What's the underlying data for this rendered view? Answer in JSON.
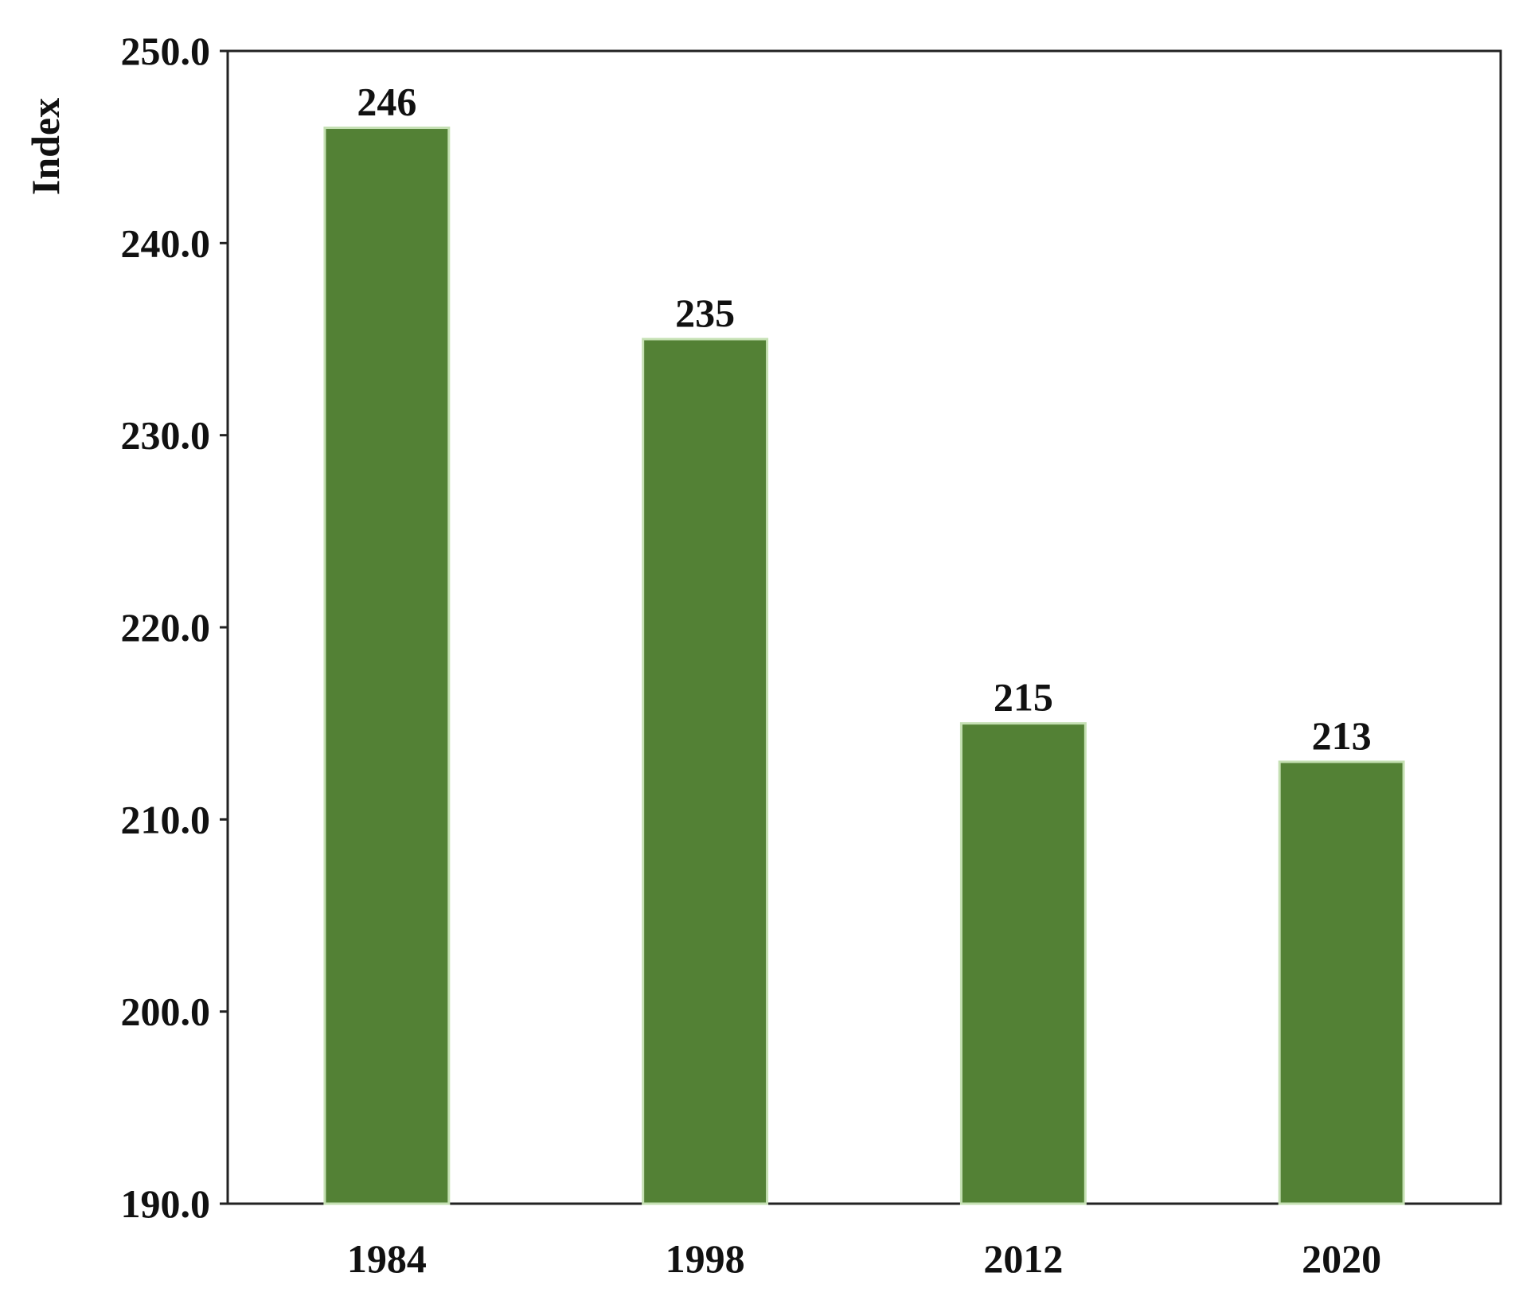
{
  "chart_data": {
    "type": "bar",
    "title": "",
    "xlabel": "",
    "ylabel": "Index",
    "categories": [
      "1984",
      "1998",
      "2012",
      "2020"
    ],
    "values": [
      246,
      235,
      215,
      213
    ],
    "data_labels": [
      "246",
      "235",
      "215",
      "213"
    ],
    "ylim": [
      190,
      250
    ],
    "yticks": [
      190,
      200,
      210,
      220,
      230,
      240,
      250
    ],
    "ytick_labels": [
      "190.0",
      "200.0",
      "210.0",
      "220.0",
      "230.0",
      "240.0",
      "250.0"
    ],
    "bar_color": "#538135",
    "bar_edge_color": "#c5e0b3",
    "axis_color": "#222222",
    "grid": false,
    "legend": "none"
  }
}
